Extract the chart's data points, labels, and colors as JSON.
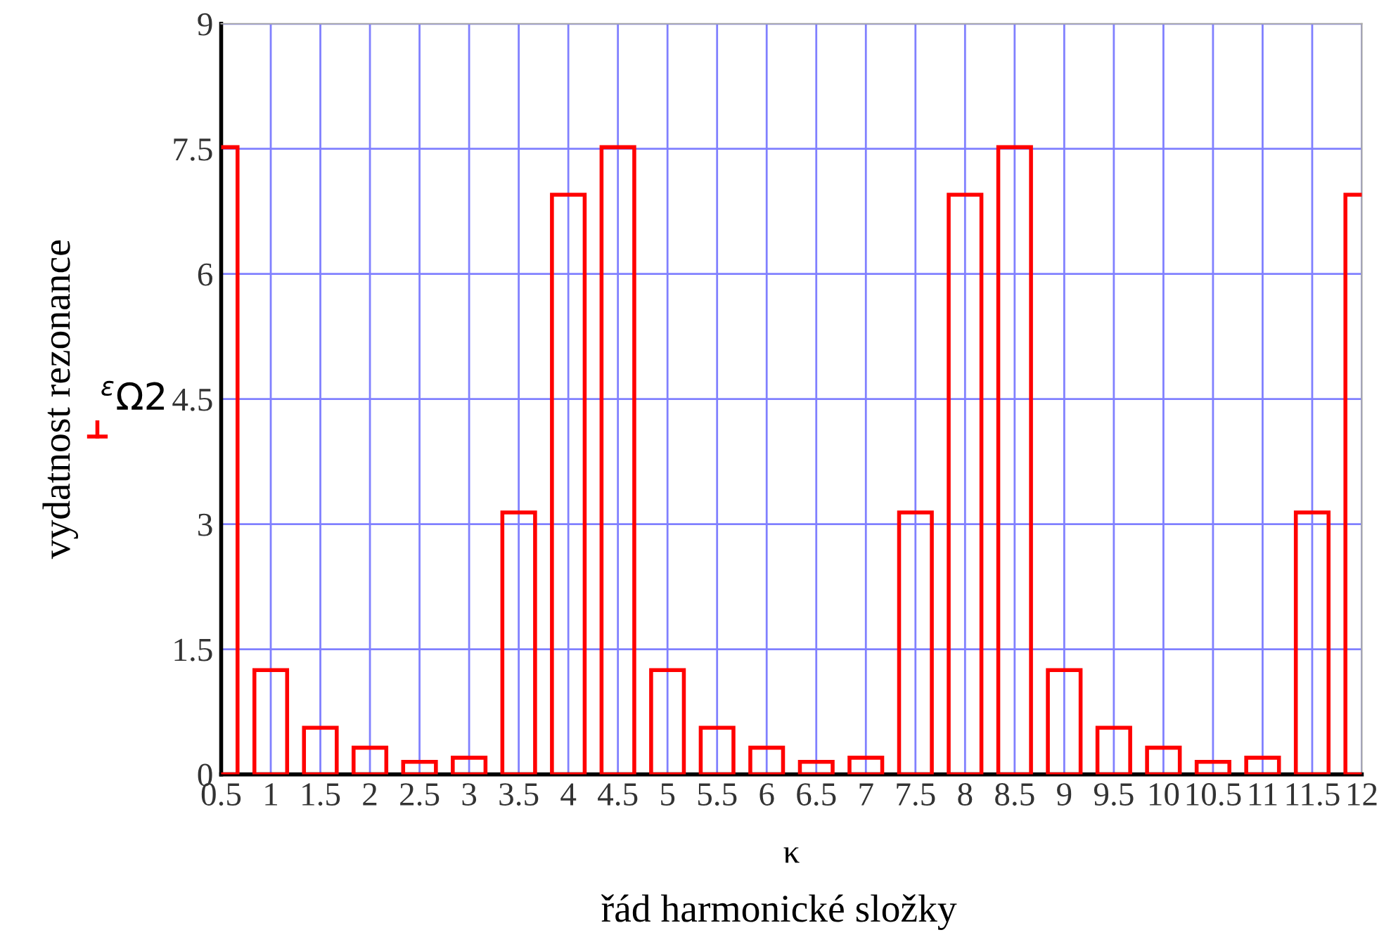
{
  "chart_data": {
    "type": "bar",
    "xlabel": "κ",
    "ylabel": "vydatnost rezonance",
    "annotations": [
      "řád harmonické složky"
    ],
    "x": [
      0.5,
      1,
      1.5,
      2,
      2.5,
      3,
      3.5,
      4,
      4.5,
      5,
      5.5,
      6,
      6.5,
      7,
      7.5,
      8,
      8.5,
      9,
      9.5,
      10,
      10.5,
      11,
      11.5,
      12
    ],
    "series": [
      {
        "name": "$^{ε}$Ω2",
        "color": "#ff0000",
        "values": [
          7.52,
          1.25,
          0.56,
          0.32,
          0.15,
          0.2,
          3.14,
          6.95,
          7.52,
          1.25,
          0.56,
          0.32,
          0.15,
          0.2,
          3.14,
          6.95,
          7.52,
          1.25,
          0.56,
          0.32,
          0.15,
          0.2,
          3.14,
          6.95
        ]
      }
    ],
    "xlim": [
      0.5,
      12
    ],
    "xticks": [
      0.5,
      1,
      1.5,
      2,
      2.5,
      3,
      3.5,
      4,
      4.5,
      5,
      5.5,
      6,
      6.5,
      7,
      7.5,
      8,
      8.5,
      9,
      9.5,
      10,
      10.5,
      11,
      11.5,
      12
    ],
    "ylim": [
      0,
      9
    ],
    "yticks": [
      0,
      1.5,
      3,
      4.5,
      6,
      7.5,
      9
    ],
    "grid": true,
    "legend": "left"
  }
}
